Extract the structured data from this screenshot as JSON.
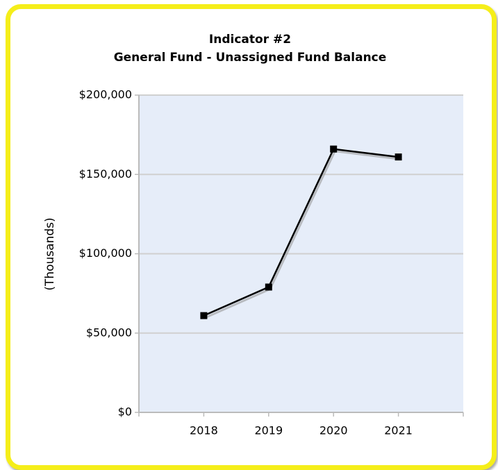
{
  "chart_data": {
    "type": "line",
    "title": "Indicator #2",
    "subtitle": "General Fund - Unassigned Fund Balance",
    "y_label": "(Thousands)",
    "categories": [
      "2018",
      "2019",
      "2020",
      "2021"
    ],
    "series": [
      {
        "name": "Unassigned Fund Balance",
        "color": "#000000",
        "values": [
          61000,
          79000,
          166000,
          161000
        ]
      }
    ],
    "ylim": [
      0,
      200000
    ],
    "yticks": [
      {
        "value": 0,
        "label": "$0"
      },
      {
        "value": 50000,
        "label": "$50,000"
      },
      {
        "value": 100000,
        "label": "$100,000"
      },
      {
        "value": 150000,
        "label": "$150,000"
      },
      {
        "value": 200000,
        "label": "$200,000"
      }
    ],
    "grid": true,
    "plot_background": "#e6edf9"
  }
}
